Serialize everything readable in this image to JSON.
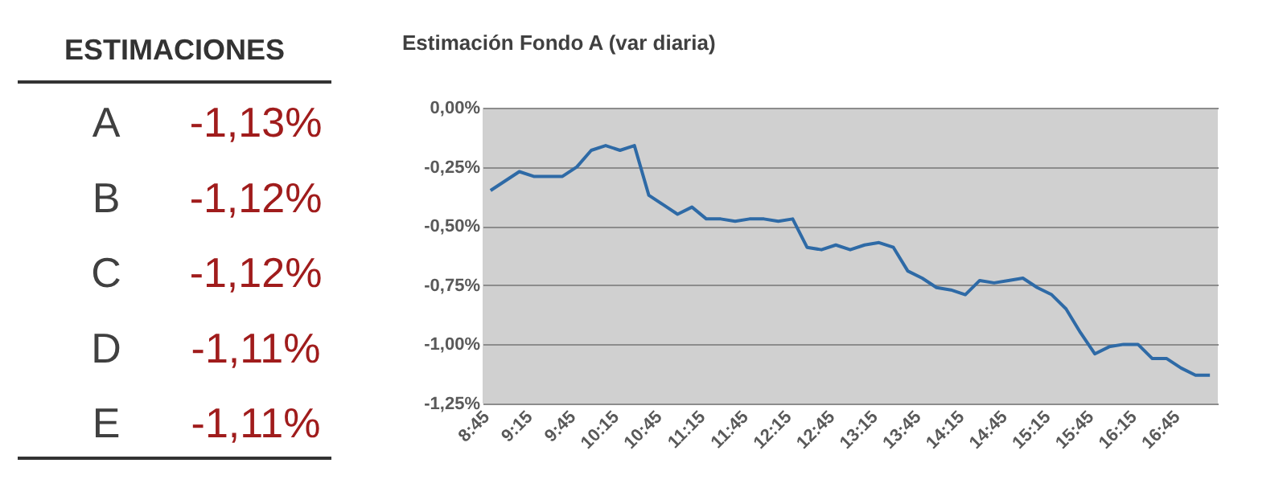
{
  "chart_data": [
    {
      "type": "other",
      "title": "ESTIMACIONES",
      "categories": [
        "A",
        "B",
        "C",
        "D",
        "E"
      ],
      "value_labels": [
        "-1,13%",
        "-1,12%",
        "-1,12%",
        "-1,11%",
        "-1,11%"
      ],
      "color": "#a01c1c"
    },
    {
      "type": "line",
      "title": "Estimación Fondo A (var diaria)",
      "categories": [
        "8:45",
        null,
        null,
        "9:15",
        null,
        null,
        "9:45",
        null,
        null,
        "10:15",
        null,
        null,
        "10:45",
        null,
        null,
        "11:15",
        null,
        null,
        "11:45",
        null,
        null,
        "12:15",
        null,
        null,
        "12:45",
        null,
        null,
        "13:15",
        null,
        null,
        "13:45",
        null,
        null,
        "14:15",
        null,
        null,
        "14:45",
        null,
        null,
        "15:15",
        null,
        null,
        "15:45",
        null,
        null,
        "16:15",
        null,
        null,
        "16:45",
        null,
        null
      ],
      "series": [
        {
          "color": "#2e6aa6",
          "values": [
            -0.35,
            -0.31,
            -0.27,
            -0.29,
            -0.29,
            -0.29,
            -0.25,
            -0.18,
            -0.16,
            -0.18,
            -0.16,
            -0.37,
            -0.41,
            -0.45,
            -0.42,
            -0.47,
            -0.47,
            -0.48,
            -0.47,
            -0.47,
            -0.48,
            -0.47,
            -0.59,
            -0.6,
            -0.58,
            -0.6,
            -0.58,
            -0.57,
            -0.59,
            -0.69,
            -0.72,
            -0.76,
            -0.77,
            -0.79,
            -0.73,
            -0.74,
            -0.73,
            -0.72,
            -0.76,
            -0.79,
            -0.85,
            -0.95,
            -1.04,
            -1.01,
            -1.0,
            -1.0,
            -1.06,
            -1.06,
            -1.1,
            -1.13,
            -1.13
          ]
        }
      ],
      "ylim": [
        -1.25,
        0
      ],
      "yticks": [
        {
          "value": 0,
          "label": "0,00%"
        },
        {
          "value": -0.25,
          "label": "-0,25%"
        },
        {
          "value": -0.5,
          "label": "-0,50%"
        },
        {
          "value": -0.75,
          "label": "-0,75%"
        },
        {
          "value": -1.0,
          "label": "-1,00%"
        },
        {
          "value": -1.25,
          "label": "-1,25%"
        }
      ],
      "grid": "y",
      "marker": "none",
      "line_style": "solid"
    }
  ]
}
